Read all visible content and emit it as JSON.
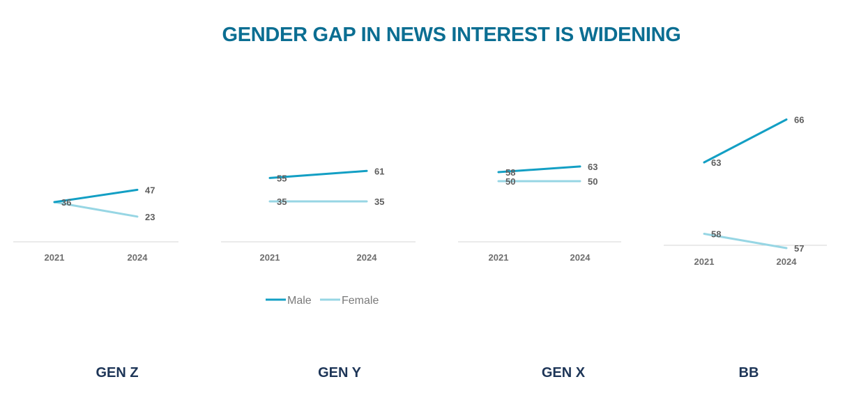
{
  "title": "GENDER GAP IN NEWS INTEREST IS WIDENING",
  "colors": {
    "title": "#0b6e92",
    "male": "#139fc4",
    "female": "#97d6e4",
    "panel_title": "#1d3557",
    "axis": "#d6d6d6"
  },
  "legend": [
    {
      "label": "Male",
      "series": "male"
    },
    {
      "label": "Female",
      "series": "female"
    }
  ],
  "chart_data": [
    {
      "type": "line",
      "title": "GEN Z",
      "x": [
        "2021",
        "2024"
      ],
      "series": [
        {
          "name": "Male",
          "values": [
            36,
            47
          ]
        },
        {
          "name": "Female",
          "values": [
            36,
            23
          ]
        }
      ],
      "value_labels": [
        [
          "36",
          "47"
        ],
        [
          "",
          "23"
        ]
      ]
    },
    {
      "type": "line",
      "title": "GEN Y",
      "x": [
        "2021",
        "2024"
      ],
      "series": [
        {
          "name": "Male",
          "values": [
            55,
            61
          ]
        },
        {
          "name": "Female",
          "values": [
            35,
            35
          ]
        }
      ],
      "value_labels": [
        [
          "55",
          "61"
        ],
        [
          "35",
          "35"
        ]
      ]
    },
    {
      "type": "line",
      "title": "GEN X",
      "x": [
        "2021",
        "2024"
      ],
      "series": [
        {
          "name": "Male",
          "values": [
            58,
            63
          ]
        },
        {
          "name": "Female",
          "values": [
            50,
            50
          ]
        }
      ],
      "value_labels": [
        [
          "58",
          "63"
        ],
        [
          "50",
          "50"
        ]
      ]
    },
    {
      "type": "line",
      "title": "BB",
      "x": [
        "2021",
        "2024"
      ],
      "series": [
        {
          "name": "Male",
          "values": [
            63,
            66
          ]
        },
        {
          "name": "Female",
          "values": [
            58,
            57
          ]
        }
      ],
      "value_labels": [
        [
          "63",
          "66"
        ],
        [
          "58",
          "57"
        ]
      ]
    }
  ]
}
